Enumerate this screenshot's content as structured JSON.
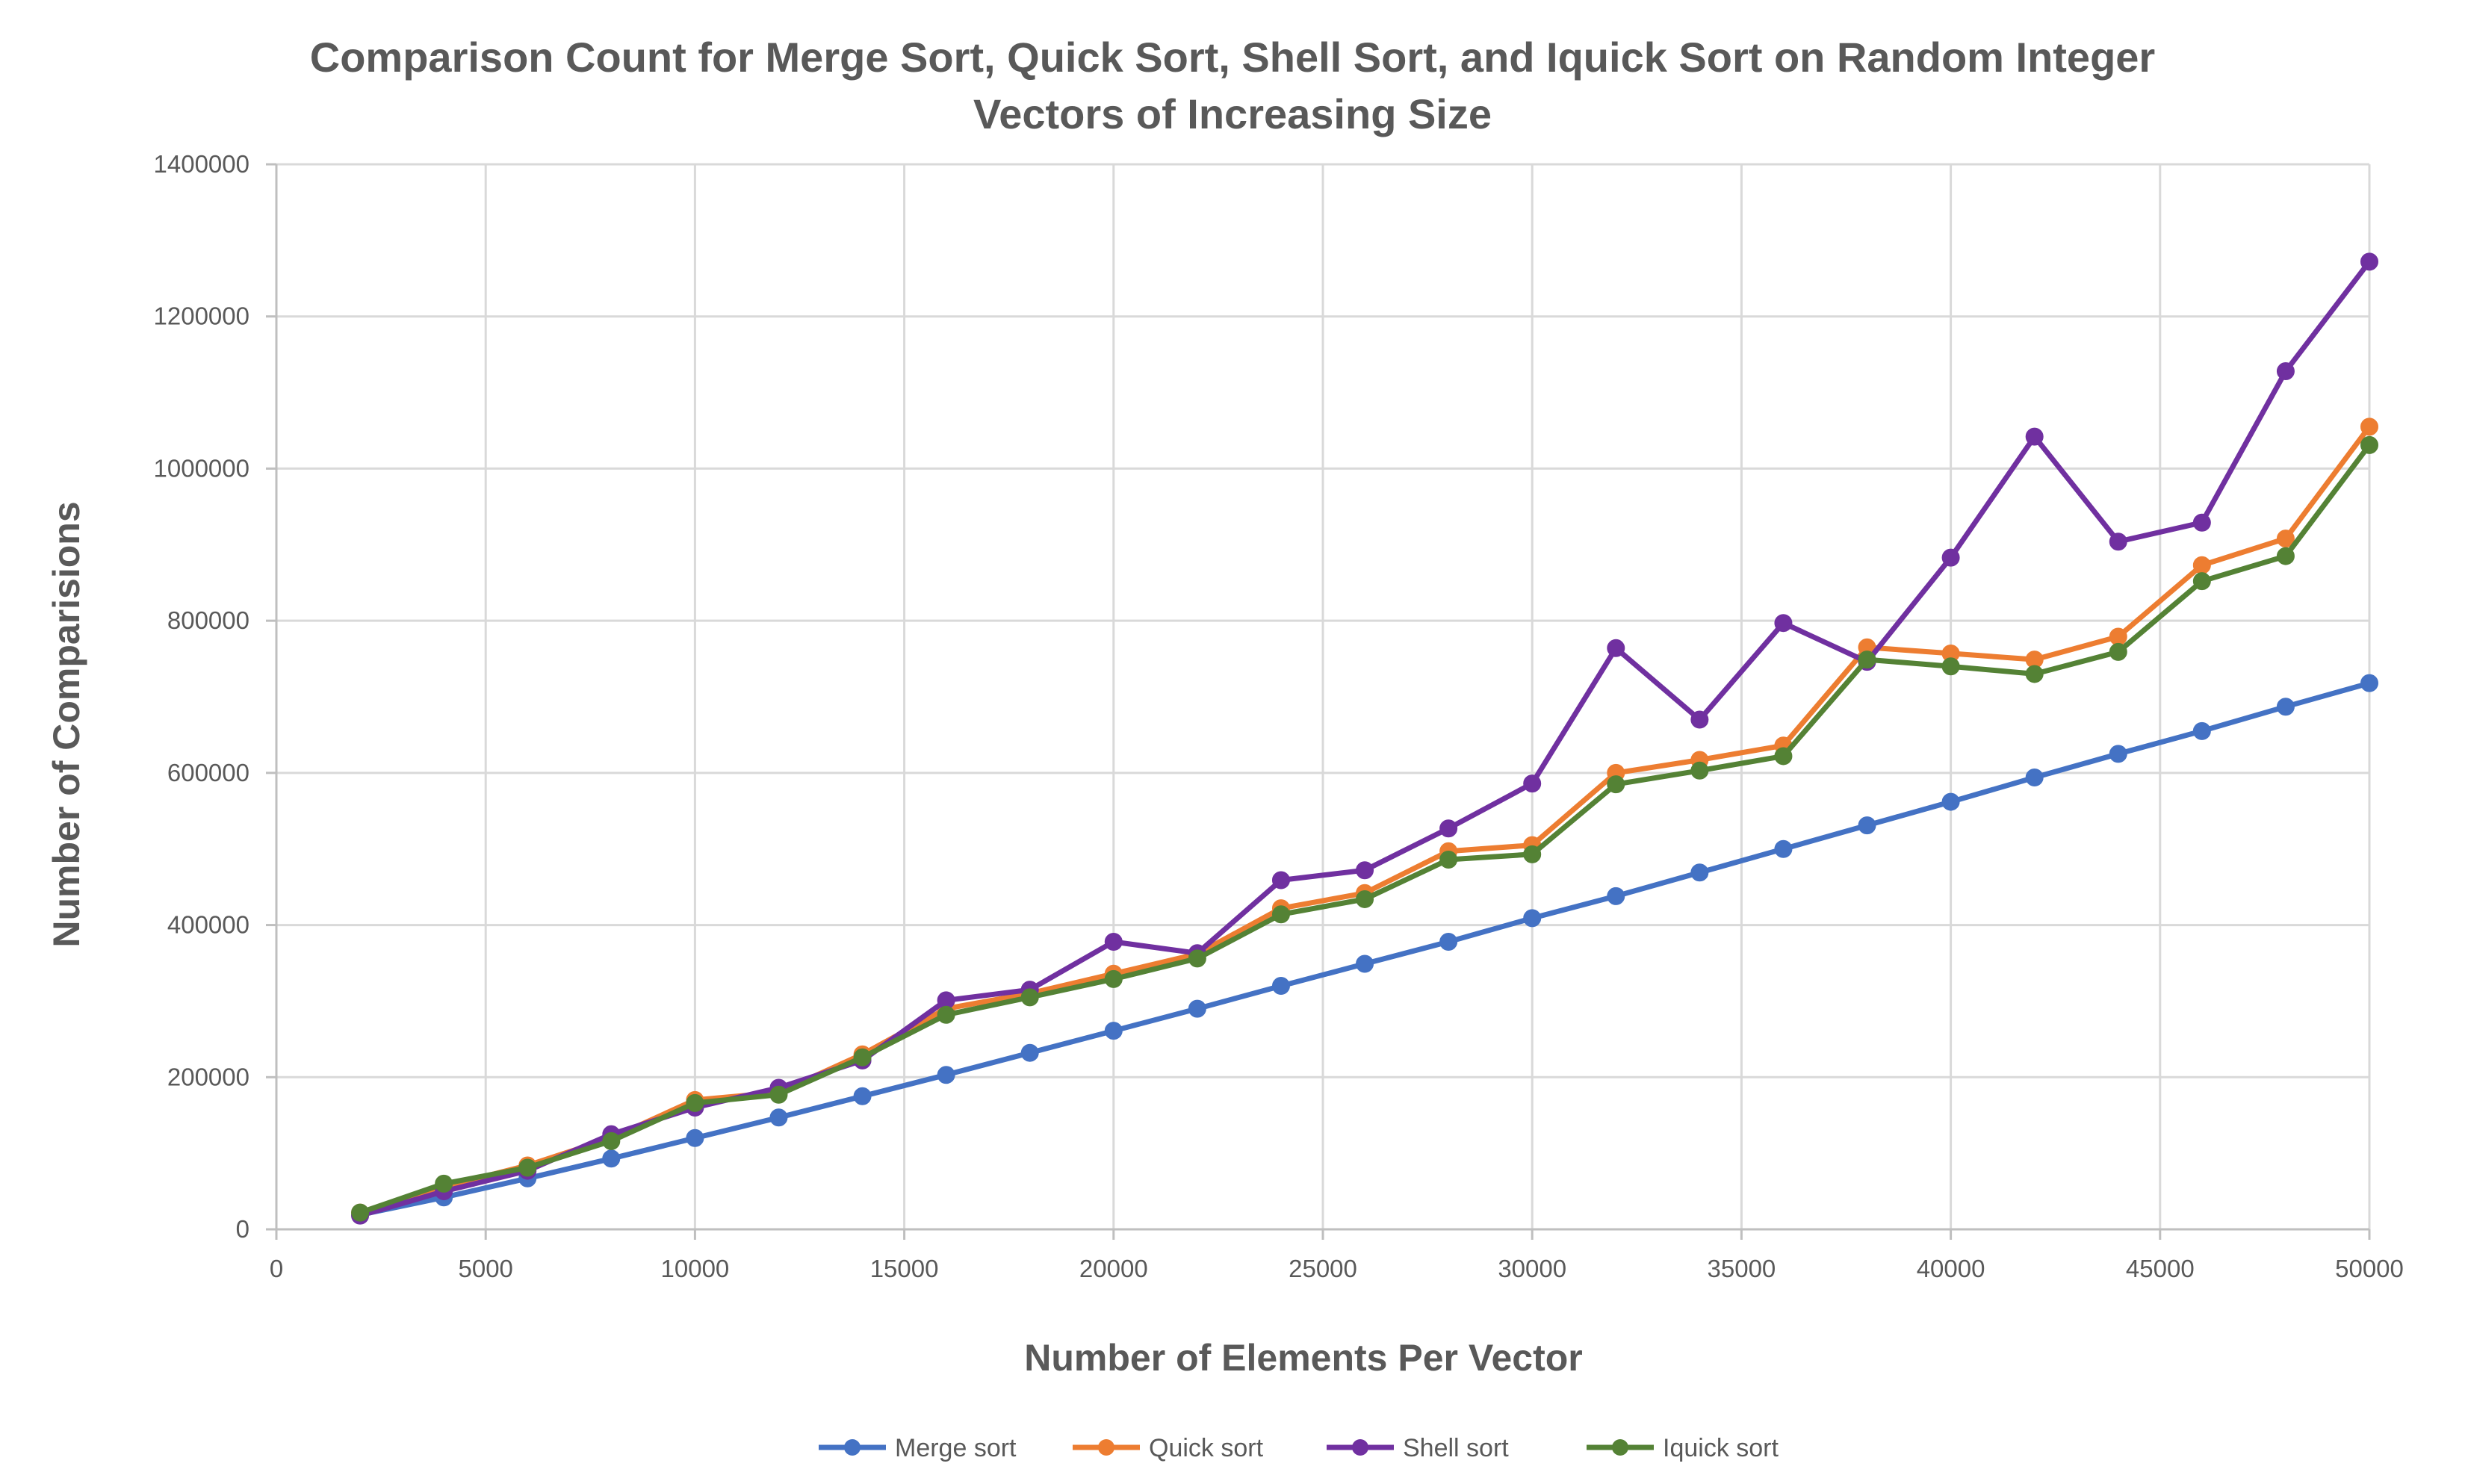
{
  "chart_data": {
    "type": "line",
    "title": "Comparison Count for Merge Sort, Quick Sort, Shell Sort, and Iquick Sort on Random Integer Vectors of Increasing Size",
    "title_lines": [
      "Comparison Count for Merge Sort, Quick Sort, Shell Sort, and Iquick Sort on Random Integer",
      "Vectors of Increasing Size"
    ],
    "xlabel": "Number of Elements Per Vector",
    "ylabel": "Number of Comparisions",
    "xlim": [
      0,
      50000
    ],
    "ylim": [
      0,
      1400000
    ],
    "x_ticks": [
      0,
      5000,
      10000,
      15000,
      20000,
      25000,
      30000,
      35000,
      40000,
      45000,
      50000
    ],
    "y_ticks": [
      0,
      200000,
      400000,
      600000,
      800000,
      1000000,
      1200000,
      1400000
    ],
    "grid": true,
    "legend_position": "bottom",
    "x": [
      2000,
      4000,
      6000,
      8000,
      10000,
      12000,
      14000,
      16000,
      18000,
      20000,
      22000,
      24000,
      26000,
      28000,
      30000,
      32000,
      34000,
      36000,
      38000,
      40000,
      42000,
      44000,
      46000,
      48000,
      50000
    ],
    "series": [
      {
        "name": "Merge sort",
        "color": "#4472c4",
        "values": [
          19000,
          42000,
          67000,
          93000,
          120000,
          147000,
          175000,
          203000,
          232000,
          261000,
          290000,
          320000,
          349000,
          378000,
          409000,
          438000,
          469000,
          500000,
          531000,
          562000,
          594000,
          625000,
          655000,
          687000,
          718000
        ]
      },
      {
        "name": "Quick sort",
        "color": "#ed7d31",
        "values": [
          22000,
          56000,
          84000,
          120000,
          170000,
          180000,
          230000,
          290000,
          310000,
          336000,
          362000,
          422000,
          442000,
          497000,
          505000,
          600000,
          617000,
          636000,
          765000,
          757000,
          749000,
          779000,
          873000,
          908000,
          1055000
        ]
      },
      {
        "name": "Shell sort",
        "color": "#7030a0",
        "values": [
          18000,
          50000,
          77000,
          125000,
          160000,
          186000,
          222000,
          301000,
          315000,
          378000,
          363000,
          459000,
          472000,
          527000,
          586000,
          764000,
          670000,
          797000,
          746000,
          883000,
          1042000,
          904000,
          929000,
          1128000,
          1272000
        ]
      },
      {
        "name": "Iquick sort",
        "color": "#548235",
        "values": [
          22000,
          60000,
          81000,
          116000,
          166000,
          177000,
          226000,
          282000,
          305000,
          329000,
          356000,
          414000,
          434000,
          486000,
          493000,
          585000,
          603000,
          622000,
          749000,
          740000,
          730000,
          759000,
          852000,
          885000,
          1031000
        ]
      }
    ]
  }
}
